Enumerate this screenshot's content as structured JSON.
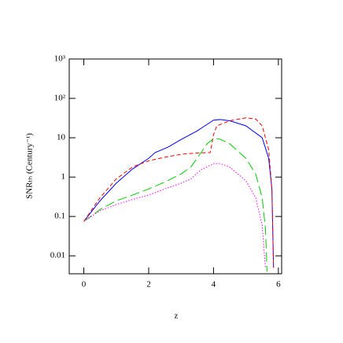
{
  "chart_data": {
    "type": "line",
    "x_label": "z",
    "y_label": "SNRₜₕ (Century⁻¹)",
    "xlim": [
      -0.45,
      6.1
    ],
    "xticks": [
      0,
      2,
      4,
      6
    ],
    "ylim": [
      0.0035,
      1000
    ],
    "ylog": true,
    "yticks": [
      0.01,
      0.1,
      1,
      10,
      {
        "value": 100,
        "label": "10²"
      },
      {
        "value": 1000,
        "label": "10³"
      }
    ],
    "series": [
      {
        "color": "#0000ff",
        "linestyle": "solid",
        "x": [
          0,
          0.5,
          1,
          1.5,
          2,
          2.2,
          2.6,
          3,
          3.5,
          4,
          4.2,
          4.5,
          5,
          5.5,
          5.7,
          5.8,
          5.85
        ],
        "values": [
          0.075,
          0.25,
          0.7,
          1.6,
          3,
          4.2,
          5.8,
          9,
          15,
          28,
          29,
          27,
          20,
          10,
          3,
          0.5,
          0.005
        ]
      },
      {
        "color": "#ff0000",
        "linestyle": "dashed",
        "x": [
          0,
          0.5,
          1,
          1.5,
          2,
          2.5,
          3,
          3.5,
          3.9,
          4,
          4.1,
          4.5,
          5,
          5.3,
          5.5,
          5.7,
          5.8,
          5.85
        ],
        "values": [
          0.075,
          0.3,
          0.9,
          1.8,
          2.6,
          3.2,
          3.8,
          4.1,
          4.2,
          12,
          20,
          27,
          32,
          30,
          20,
          5,
          0.5,
          0.005
        ]
      },
      {
        "color": "#00cc00",
        "linestyle": "longdash",
        "x": [
          0,
          0.5,
          1,
          1.5,
          2,
          2.5,
          3,
          3.3,
          3.6,
          3.8,
          4,
          4.2,
          4.5,
          5,
          5.3,
          5.5,
          5.6,
          5.65
        ],
        "values": [
          0.075,
          0.15,
          0.25,
          0.35,
          0.5,
          0.75,
          1.2,
          1.8,
          4,
          7,
          9.5,
          9.2,
          7,
          3,
          1.2,
          0.3,
          0.05,
          0.004
        ]
      },
      {
        "color": "#ff00ff",
        "linestyle": "dotted",
        "x": [
          0,
          0.5,
          1,
          1.5,
          2,
          2.5,
          3,
          3.3,
          3.6,
          4,
          4.2,
          4.5,
          5,
          5.3,
          5.5,
          5.6
        ],
        "values": [
          0.075,
          0.14,
          0.2,
          0.27,
          0.35,
          0.5,
          0.7,
          0.9,
          1.5,
          2.2,
          2.2,
          1.8,
          0.8,
          0.3,
          0.06,
          0.005
        ]
      }
    ]
  }
}
